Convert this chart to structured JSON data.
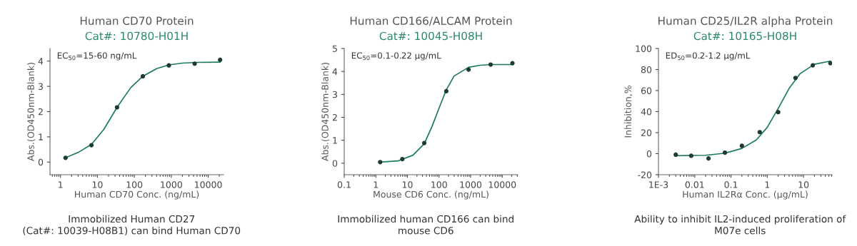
{
  "chart_data": [
    {
      "type": "scatter",
      "title": "Human CD70 Protein",
      "subtitle": "Cat#: 10780-H01H",
      "xlabel": "Human CD70 Conc. (ng/mL)",
      "ylabel": "Abs.(OD450nm-Blank)",
      "log": "x",
      "xlim": [
        0.52,
        26000
      ],
      "ylim": [
        -0.5,
        4.5
      ],
      "xticks": [
        1,
        10,
        100,
        1000,
        10000
      ],
      "yticks": [
        0,
        1,
        2,
        3,
        4
      ],
      "annotations": [
        "EC$_{50}$=15-60 ng/mL",
        "Immobilized Human CD27\n(Cat#: 10039-H08B1) can bind Human CD70"
      ],
      "series": [
        {
          "marker": "circle",
          "color": "#1f3a33",
          "x": [
            1.37,
            6.9,
            34,
            170,
            860,
            4300,
            21000
          ],
          "values": [
            0.17,
            0.67,
            2.17,
            3.4,
            3.83,
            3.9,
            4.05
          ]
        },
        {
          "type": "line",
          "marker": "none",
          "color": "#1a7a5e",
          "x": [
            1.37,
            3,
            6.9,
            15,
            34,
            80,
            170,
            400,
            860,
            2000,
            5000,
            21000
          ],
          "values": [
            0.17,
            0.38,
            0.7,
            1.3,
            2.17,
            2.95,
            3.4,
            3.7,
            3.85,
            3.92,
            3.95,
            3.96
          ]
        }
      ]
    },
    {
      "type": "scatter",
      "title": "Human CD166/ALCAM Protein",
      "subtitle": "Cat#: 10045-H08H",
      "xlabel": "Mouse CD6 Conc. (ng/mL)",
      "ylabel": "Abs.(OD450nm-Blank)",
      "log": "x",
      "xlim": [
        0.1,
        31000
      ],
      "ylim": [
        -0.5,
        5
      ],
      "xticks": [
        0.1,
        1,
        10,
        100,
        1000,
        10000
      ],
      "yticks": [
        0,
        1,
        2,
        3,
        4,
        5
      ],
      "annotations": [
        "EC$_{50}$=0.1-0.22 μg/mL",
        "Immobilized human CD166 can bind\nmouse CD6"
      ],
      "series": [
        {
          "marker": "circle",
          "color": "#1f3a33",
          "x": [
            1.37,
            6.9,
            34,
            170,
            860,
            4300,
            21000
          ],
          "values": [
            0.05,
            0.18,
            0.88,
            3.14,
            4.08,
            4.3,
            4.36
          ]
        },
        {
          "type": "line",
          "marker": "none",
          "color": "#1a7a5e",
          "x": [
            1.37,
            5,
            15,
            34,
            60,
            100,
            170,
            300,
            860,
            2000,
            5000,
            21000
          ],
          "values": [
            0.05,
            0.1,
            0.35,
            0.85,
            1.6,
            2.4,
            3.2,
            3.8,
            4.18,
            4.27,
            4.3,
            4.3
          ]
        }
      ]
    },
    {
      "type": "scatter",
      "title": "Human CD25/IL2R alpha Protein",
      "subtitle": "Cat#: 10165-H08H",
      "xlabel": "Human IL2Rα Conc. (μg/mL)",
      "ylabel": "Inhibition,%",
      "log": "x",
      "xlim": [
        0.001,
        61
      ],
      "ylim": [
        -20,
        100
      ],
      "xticks": [
        {
          "value": 0.001,
          "label": "1E-3"
        },
        0.01,
        0.1,
        1,
        10
      ],
      "yticks": [
        -20,
        0,
        20,
        40,
        60,
        80,
        100
      ],
      "annotations": [
        "ED$_{50}$=0.2-1.2 μg/mL",
        "Ability to inhibit IL2-induced proliferation of\nM07e cells"
      ],
      "series": [
        {
          "marker": "circle",
          "color": "#1f3a33",
          "x": [
            0.003,
            0.008,
            0.024,
            0.068,
            0.2,
            0.62,
            2,
            6,
            18,
            55
          ],
          "values": [
            -1,
            -2,
            -4.5,
            1,
            7.5,
            20.5,
            39.5,
            72,
            84,
            86
          ]
        },
        {
          "type": "line",
          "marker": "none",
          "color": "#1a7a5e",
          "x": [
            0.003,
            0.02,
            0.07,
            0.2,
            0.5,
            1,
            2,
            4,
            8,
            20,
            55
          ],
          "values": [
            -2,
            -1.5,
            0.5,
            5,
            13,
            25,
            43,
            62,
            76,
            85,
            88
          ]
        }
      ]
    }
  ]
}
